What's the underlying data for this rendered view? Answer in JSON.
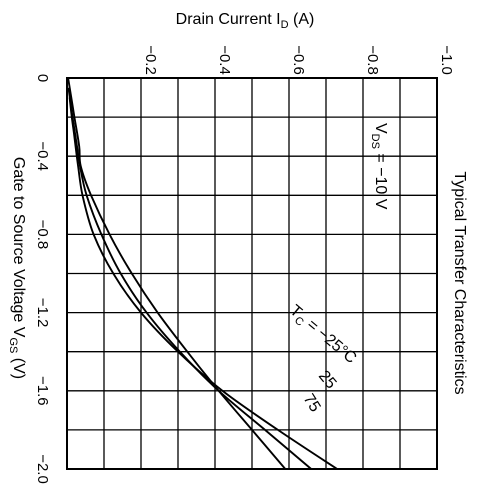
{
  "chart_data": {
    "type": "line",
    "title": "Typical Transfer Characteristics",
    "xlabel": "Gate to Source Voltage",
    "xlabel_symbol": "V",
    "xlabel_sub": "GS",
    "xlabel_unit": "(V)",
    "ylabel": "Drain Current",
    "ylabel_symbol": "I",
    "ylabel_sub": "D",
    "ylabel_unit": "(A)",
    "xlim": [
      0,
      -2.0
    ],
    "ylim": [
      0,
      -1.0
    ],
    "x_ticks": [
      0,
      -0.2,
      -0.4,
      -0.6,
      -0.8,
      -1.0,
      -1.2,
      -1.4,
      -1.6,
      -1.8,
      -2.0
    ],
    "x_tick_labels": [
      "0",
      "",
      "−0.4",
      "",
      "−0.8",
      "",
      "−1.2",
      "",
      "−1.6",
      "",
      "−2.0"
    ],
    "y_ticks": [
      0,
      -0.1,
      -0.2,
      -0.3,
      -0.4,
      -0.5,
      -0.6,
      -0.7,
      -0.8,
      -0.9,
      -1.0
    ],
    "y_tick_labels": [
      "",
      "",
      "−0.2",
      "",
      "−0.4",
      "",
      "−0.6",
      "",
      "−0.8",
      "",
      "−1.0"
    ],
    "grid": true,
    "orientation": "rotated 90 degrees clockwise",
    "conditions": {
      "vds": {
        "symbol": "V",
        "sub": "DS",
        "rest": " = −10 V"
      }
    },
    "series": [
      {
        "name": "T_C = −25°C",
        "x": [
          -0.1,
          -0.2,
          -0.3,
          -0.45,
          -0.6,
          -0.8,
          -1.0,
          -1.2,
          -1.4,
          -1.6,
          -1.8,
          -2.0
        ],
        "y": [
          -0.007,
          -0.013,
          -0.02,
          -0.03,
          -0.042,
          -0.072,
          -0.125,
          -0.2,
          -0.3,
          -0.42,
          -0.57,
          -0.73
        ]
      },
      {
        "name": "25",
        "x": [
          -0.05,
          -0.2,
          -0.35,
          -0.45,
          -0.6,
          -0.8,
          -1.0,
          -1.2,
          -1.4,
          -1.6,
          -1.8,
          -2.0
        ],
        "y": [
          -0.004,
          -0.015,
          -0.027,
          -0.035,
          -0.053,
          -0.093,
          -0.145,
          -0.215,
          -0.305,
          -0.41,
          -0.535,
          -0.66
        ]
      },
      {
        "name": "75",
        "x": [
          0,
          -0.2,
          -0.35,
          -0.45,
          -0.6,
          -0.8,
          -1.0,
          -1.2,
          -1.4,
          -1.6,
          -1.8,
          -2.0
        ],
        "y": [
          -0.003,
          -0.02,
          -0.033,
          -0.037,
          -0.065,
          -0.115,
          -0.175,
          -0.245,
          -0.325,
          -0.41,
          -0.5,
          -0.59
        ]
      }
    ],
    "annotations": {
      "tc": {
        "symbol": "T",
        "sub": "C",
        "rest": " = −25°C"
      },
      "label_25": "25",
      "label_75": "75"
    }
  }
}
